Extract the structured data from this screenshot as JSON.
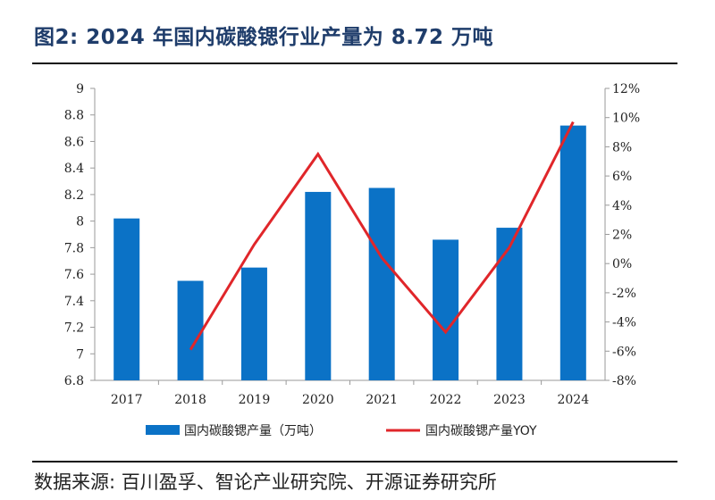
{
  "header": {
    "title": "图2:  2024 年国内碳酸锶行业产量为 8.72 万吨"
  },
  "footer": {
    "source": "数据来源:  百川盈孚、智论产业研究院、开源证券研究所"
  },
  "chart_data": {
    "type": "bar",
    "categories": [
      "2017",
      "2018",
      "2019",
      "2020",
      "2021",
      "2022",
      "2023",
      "2024"
    ],
    "series": [
      {
        "name": "国内碳酸锶产量（万吨）",
        "type": "bar",
        "axis": "left",
        "color": "#0b72c6",
        "values": [
          8.02,
          7.55,
          7.65,
          8.22,
          8.25,
          7.86,
          7.95,
          8.72
        ]
      },
      {
        "name": "国内碳酸锶产量YOY",
        "type": "line",
        "axis": "right",
        "color": "#e0262a",
        "values": [
          null,
          -5.9,
          1.3,
          7.5,
          0.4,
          -4.7,
          1.1,
          9.7
        ]
      }
    ],
    "y_left": {
      "min": 6.8,
      "max": 9,
      "step": 0.2
    },
    "y_right": {
      "min": -8,
      "max": 12,
      "step": 2,
      "unit": "%"
    },
    "grid": false,
    "legend": "bottom"
  }
}
